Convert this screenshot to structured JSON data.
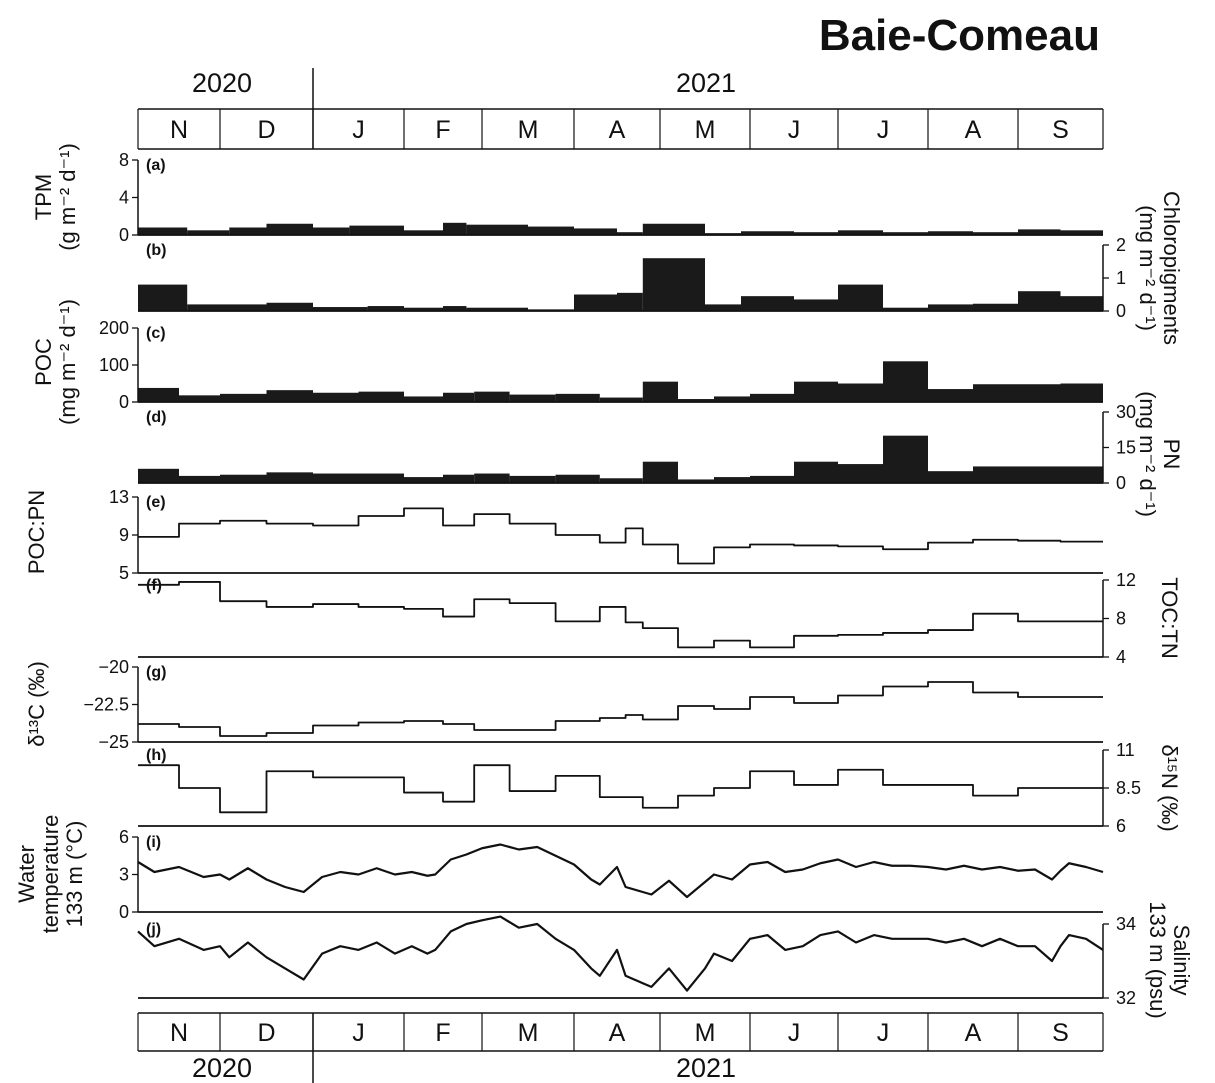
{
  "title": "Baie-Comeau",
  "years": [
    "2020",
    "2021"
  ],
  "months": [
    "N",
    "D",
    "J",
    "F",
    "M",
    "A",
    "M",
    "J",
    "J",
    "A",
    "S"
  ],
  "colors": {
    "ink": "#111111",
    "bar": "#1a1a1a"
  },
  "chart_data": [
    {
      "type": "bar",
      "panel": "(a)",
      "ylabel_lines": [
        "TPM",
        "(g m⁻² d⁻¹)"
      ],
      "yaxis": "left",
      "ylim": [
        0,
        8
      ],
      "yticks": [
        0,
        4,
        8
      ],
      "grid": false,
      "x": [
        [
          0,
          0.6
        ],
        [
          0.6,
          1.1
        ],
        [
          1.1,
          1.5
        ],
        [
          1.5,
          2.0
        ],
        [
          2.0,
          2.4
        ],
        [
          2.4,
          3.0
        ],
        [
          3.0,
          3.5
        ],
        [
          3.5,
          3.8
        ],
        [
          3.8,
          4.5
        ],
        [
          4.5,
          5.0
        ],
        [
          5.0,
          5.5
        ],
        [
          5.5,
          5.8
        ],
        [
          5.8,
          6.5
        ],
        [
          6.5,
          6.9
        ],
        [
          6.9,
          7.5
        ],
        [
          7.5,
          8.0
        ],
        [
          8.0,
          8.5
        ],
        [
          8.5,
          9.0
        ],
        [
          9.0,
          9.5
        ],
        [
          9.5,
          10.0
        ],
        [
          10.0,
          10.5
        ],
        [
          10.5,
          11.0
        ]
      ],
      "values": [
        0.8,
        0.5,
        0.8,
        1.2,
        0.8,
        1.0,
        0.5,
        1.3,
        1.1,
        0.9,
        0.7,
        0.3,
        1.2,
        0.2,
        0.4,
        0.3,
        0.5,
        0.3,
        0.4,
        0.3,
        0.6,
        0.5
      ]
    },
    {
      "type": "bar",
      "panel": "(b)",
      "ylabel_lines": [
        "Chloropigments",
        "(mg m⁻² d⁻¹)"
      ],
      "yaxis": "right",
      "ylim": [
        0,
        2
      ],
      "yticks": [
        0,
        1,
        2
      ],
      "grid": false,
      "x": [
        [
          0,
          0.6
        ],
        [
          0.6,
          1.5
        ],
        [
          1.5,
          2.0
        ],
        [
          2.0,
          2.6
        ],
        [
          2.6,
          3.0
        ],
        [
          3.0,
          3.5
        ],
        [
          3.5,
          3.8
        ],
        [
          3.8,
          4.5
        ],
        [
          4.5,
          5.0
        ],
        [
          5.0,
          5.5
        ],
        [
          5.5,
          5.8
        ],
        [
          5.8,
          6.5
        ],
        [
          6.5,
          6.9
        ],
        [
          6.9,
          7.5
        ],
        [
          7.5,
          8.0
        ],
        [
          8.0,
          8.5
        ],
        [
          8.5,
          9.0
        ],
        [
          9.0,
          9.5
        ],
        [
          9.5,
          10.0
        ],
        [
          10.0,
          10.5
        ],
        [
          10.5,
          11.0
        ]
      ],
      "values": [
        0.8,
        0.2,
        0.25,
        0.12,
        0.15,
        0.1,
        0.15,
        0.1,
        0.05,
        0.5,
        0.55,
        1.6,
        0.2,
        0.45,
        0.35,
        0.8,
        0.1,
        0.2,
        0.22,
        0.6,
        0.45
      ]
    },
    {
      "type": "bar",
      "panel": "(c)",
      "ylabel_lines": [
        "POC",
        "(mg m⁻² d⁻¹)"
      ],
      "yaxis": "left",
      "ylim": [
        0,
        200
      ],
      "yticks": [
        0,
        100,
        200
      ],
      "grid": false,
      "x": [
        [
          0,
          0.5
        ],
        [
          0.5,
          1.0
        ],
        [
          1.0,
          1.5
        ],
        [
          1.5,
          2.0
        ],
        [
          2.0,
          2.5
        ],
        [
          2.5,
          3.0
        ],
        [
          3.0,
          3.5
        ],
        [
          3.5,
          3.9
        ],
        [
          3.9,
          4.3
        ],
        [
          4.3,
          4.8
        ],
        [
          4.8,
          5.3
        ],
        [
          5.3,
          5.8
        ],
        [
          5.8,
          6.2
        ],
        [
          6.2,
          6.6
        ],
        [
          6.6,
          7.0
        ],
        [
          7.0,
          7.5
        ],
        [
          7.5,
          8.0
        ],
        [
          8.0,
          8.5
        ],
        [
          8.5,
          9.0
        ],
        [
          9.0,
          9.5
        ],
        [
          9.5,
          10.0
        ],
        [
          10.0,
          10.5
        ],
        [
          10.5,
          11.0
        ]
      ],
      "values": [
        38,
        18,
        22,
        32,
        25,
        28,
        15,
        25,
        28,
        20,
        22,
        12,
        55,
        8,
        15,
        22,
        55,
        50,
        110,
        35,
        48,
        48,
        50
      ]
    },
    {
      "type": "bar",
      "panel": "(d)",
      "ylabel_lines": [
        "PN",
        "(mg m⁻² d⁻¹)"
      ],
      "yaxis": "right",
      "ylim": [
        0,
        30
      ],
      "yticks": [
        0,
        15,
        30
      ],
      "grid": false,
      "x": [
        [
          0,
          0.5
        ],
        [
          0.5,
          1.0
        ],
        [
          1.0,
          1.5
        ],
        [
          1.5,
          2.0
        ],
        [
          2.0,
          2.5
        ],
        [
          2.5,
          3.0
        ],
        [
          3.0,
          3.5
        ],
        [
          3.5,
          3.9
        ],
        [
          3.9,
          4.3
        ],
        [
          4.3,
          4.8
        ],
        [
          4.8,
          5.3
        ],
        [
          5.3,
          5.8
        ],
        [
          5.8,
          6.2
        ],
        [
          6.2,
          6.6
        ],
        [
          6.6,
          7.0
        ],
        [
          7.0,
          7.5
        ],
        [
          7.5,
          8.0
        ],
        [
          8.0,
          8.5
        ],
        [
          8.5,
          9.0
        ],
        [
          9.0,
          9.5
        ],
        [
          9.5,
          10.0
        ],
        [
          10.0,
          10.5
        ],
        [
          10.5,
          11.0
        ]
      ],
      "values": [
        6,
        3,
        3.5,
        4.5,
        4,
        4,
        2.5,
        3.5,
        4,
        3,
        3.5,
        2,
        9,
        1.5,
        2.5,
        3,
        9,
        8,
        20,
        5,
        7,
        7,
        7
      ]
    },
    {
      "type": "line",
      "panel": "(e)",
      "ylabel_lines": [
        "POC:PN"
      ],
      "yaxis": "left",
      "ylim": [
        5,
        13
      ],
      "yticks": [
        5,
        9,
        13
      ],
      "step": true,
      "x": [
        0,
        0.5,
        1.0,
        1.5,
        2.0,
        2.5,
        3.0,
        3.5,
        3.9,
        4.3,
        4.8,
        5.3,
        5.6,
        5.8,
        6.2,
        6.6,
        7.0,
        7.5,
        8.0,
        8.5,
        9.0,
        9.5,
        10.0,
        10.5,
        11.0
      ],
      "values": [
        8.8,
        10.2,
        10.5,
        10.2,
        10.0,
        11.0,
        11.8,
        10.0,
        11.2,
        10.2,
        9.0,
        8.2,
        9.7,
        8.0,
        6.0,
        7.7,
        8.0,
        7.9,
        7.8,
        7.5,
        8.2,
        8.5,
        8.4,
        8.3,
        8.3
      ]
    },
    {
      "type": "line",
      "panel": "(f)",
      "ylabel_lines": [
        "TOC:TN"
      ],
      "yaxis": "right",
      "ylim": [
        4,
        12
      ],
      "yticks": [
        4,
        8,
        12
      ],
      "step": true,
      "x": [
        0,
        0.5,
        1.0,
        1.5,
        2.0,
        2.5,
        3.0,
        3.5,
        3.9,
        4.3,
        4.8,
        5.3,
        5.6,
        5.8,
        6.2,
        6.6,
        7.0,
        7.5,
        8.0,
        8.5,
        9.0,
        9.5,
        10.0,
        10.5,
        11.0
      ],
      "values": [
        11.5,
        11.8,
        9.8,
        9.2,
        9.5,
        9.2,
        9.0,
        8.2,
        10.0,
        9.6,
        7.7,
        9.2,
        7.6,
        7.0,
        5.0,
        5.7,
        5.0,
        6.2,
        6.3,
        6.5,
        6.8,
        8.5,
        7.7,
        7.7,
        7.7
      ]
    },
    {
      "type": "line",
      "panel": "(g)",
      "ylabel_lines": [
        "δ¹³C (‰)"
      ],
      "yaxis": "left",
      "ylim": [
        -25,
        -20
      ],
      "yticks": [
        -25,
        -22.5,
        -20
      ],
      "step": true,
      "x": [
        0,
        0.5,
        1.0,
        1.5,
        2.0,
        2.5,
        3.0,
        3.5,
        3.9,
        4.3,
        4.8,
        5.3,
        5.6,
        5.8,
        6.2,
        6.6,
        7.0,
        7.5,
        8.0,
        8.5,
        9.0,
        9.5,
        10.0,
        10.5,
        11.0
      ],
      "values": [
        -23.8,
        -24.0,
        -24.6,
        -24.4,
        -23.9,
        -23.7,
        -23.6,
        -23.8,
        -24.2,
        -24.2,
        -23.6,
        -23.4,
        -23.2,
        -23.5,
        -22.6,
        -22.8,
        -22.0,
        -22.4,
        -21.9,
        -21.3,
        -21.0,
        -21.7,
        -22.0,
        -22.0,
        -22.0
      ]
    },
    {
      "type": "line",
      "panel": "(h)",
      "ylabel_lines": [
        "δ¹⁵N (‰)"
      ],
      "yaxis": "right",
      "ylim": [
        6,
        11
      ],
      "yticks": [
        6,
        8.5,
        11
      ],
      "step": true,
      "x": [
        0,
        0.5,
        1.0,
        1.5,
        2.0,
        2.5,
        3.0,
        3.5,
        3.9,
        4.3,
        4.8,
        5.3,
        5.8,
        6.2,
        6.6,
        7.0,
        7.5,
        8.0,
        8.5,
        9.0,
        9.5,
        10.0,
        10.5,
        11.0
      ],
      "values": [
        10.0,
        8.5,
        6.9,
        9.6,
        9.2,
        9.2,
        8.2,
        7.6,
        10.0,
        8.3,
        9.3,
        7.9,
        7.2,
        8.0,
        8.5,
        9.6,
        8.7,
        9.7,
        8.7,
        8.7,
        8.0,
        8.5,
        8.5,
        8.5
      ]
    },
    {
      "type": "line",
      "panel": "(i)",
      "ylabel_lines": [
        "Water",
        "temperature",
        "133 m (°C)"
      ],
      "yaxis": "left",
      "ylim": [
        0,
        6
      ],
      "yticks": [
        0,
        3,
        6
      ],
      "step": false,
      "x": [
        0,
        0.2,
        0.5,
        0.8,
        1.0,
        1.1,
        1.3,
        1.5,
        1.7,
        1.9,
        2.1,
        2.3,
        2.5,
        2.7,
        2.9,
        3.1,
        3.3,
        3.4,
        3.6,
        3.8,
        4.0,
        4.2,
        4.4,
        4.6,
        4.8,
        5.0,
        5.2,
        5.3,
        5.5,
        5.6,
        5.8,
        5.9,
        6.1,
        6.3,
        6.5,
        6.6,
        6.8,
        7.0,
        7.2,
        7.4,
        7.6,
        7.8,
        8.0,
        8.2,
        8.4,
        8.6,
        8.8,
        9.0,
        9.2,
        9.4,
        9.6,
        9.8,
        10.0,
        10.2,
        10.4,
        10.5,
        10.6,
        10.8,
        11.0
      ],
      "values": [
        4.0,
        3.2,
        3.6,
        2.8,
        3.0,
        2.6,
        3.5,
        2.6,
        2.0,
        1.6,
        2.8,
        3.2,
        3.0,
        3.5,
        3.0,
        3.2,
        2.9,
        3.0,
        4.2,
        4.6,
        5.1,
        5.4,
        5.0,
        5.2,
        4.5,
        3.8,
        2.6,
        2.2,
        3.6,
        2.0,
        1.6,
        1.4,
        2.5,
        1.2,
        2.4,
        3.0,
        2.6,
        3.8,
        4.0,
        3.2,
        3.4,
        3.9,
        4.2,
        3.6,
        4.0,
        3.7,
        3.7,
        3.6,
        3.4,
        3.7,
        3.4,
        3.6,
        3.3,
        3.4,
        2.6,
        3.3,
        3.9,
        3.6,
        3.2
      ]
    },
    {
      "type": "line",
      "panel": "(j)",
      "ylabel_lines": [
        "Salinity",
        "133 m (psu)"
      ],
      "yaxis": "right",
      "ylim": [
        32,
        34
      ],
      "yticks": [
        32,
        34
      ],
      "step": false,
      "x": [
        0,
        0.2,
        0.5,
        0.8,
        1.0,
        1.1,
        1.3,
        1.5,
        1.7,
        1.9,
        2.1,
        2.3,
        2.5,
        2.7,
        2.9,
        3.1,
        3.3,
        3.4,
        3.6,
        3.8,
        4.0,
        4.2,
        4.4,
        4.6,
        4.8,
        5.0,
        5.2,
        5.3,
        5.5,
        5.6,
        5.8,
        5.9,
        6.1,
        6.3,
        6.5,
        6.6,
        6.8,
        7.0,
        7.2,
        7.4,
        7.6,
        7.8,
        8.0,
        8.2,
        8.4,
        8.6,
        8.8,
        9.0,
        9.2,
        9.4,
        9.6,
        9.8,
        10.0,
        10.2,
        10.4,
        10.5,
        10.6,
        10.8,
        11.0
      ],
      "values": [
        33.8,
        33.4,
        33.6,
        33.3,
        33.4,
        33.1,
        33.5,
        33.1,
        32.8,
        32.5,
        33.2,
        33.4,
        33.3,
        33.5,
        33.2,
        33.4,
        33.2,
        33.3,
        33.8,
        34.0,
        34.1,
        34.2,
        33.9,
        34.0,
        33.6,
        33.3,
        32.8,
        32.6,
        33.3,
        32.6,
        32.4,
        32.3,
        32.8,
        32.2,
        32.8,
        33.2,
        33.0,
        33.6,
        33.7,
        33.3,
        33.4,
        33.7,
        33.8,
        33.5,
        33.7,
        33.6,
        33.6,
        33.6,
        33.5,
        33.6,
        33.4,
        33.6,
        33.4,
        33.4,
        33.0,
        33.4,
        33.7,
        33.6,
        33.3
      ]
    }
  ]
}
